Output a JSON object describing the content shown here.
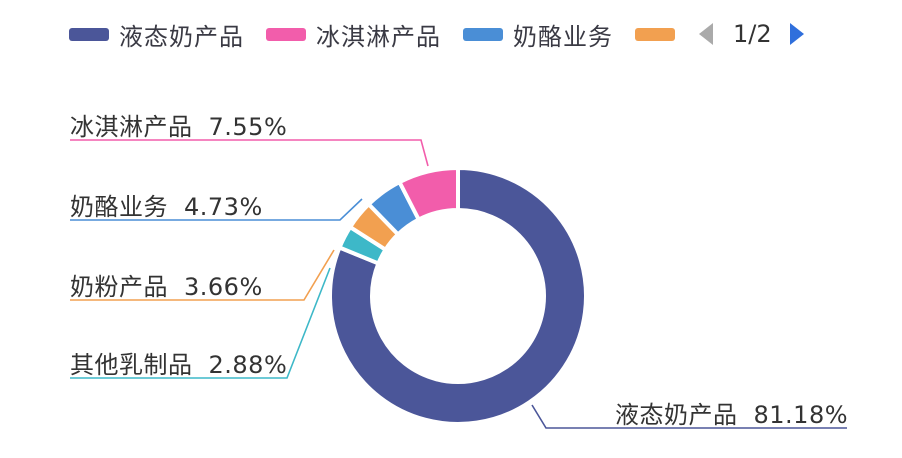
{
  "legend": {
    "items": [
      {
        "label": "液态奶产品",
        "color": "#4B5699"
      },
      {
        "label": "冰淇淋产品",
        "color": "#F25DAB"
      },
      {
        "label": "奶酪业务",
        "color": "#4A8ED6"
      },
      {
        "label": "",
        "color": "#F2A050"
      }
    ],
    "page": "1/2",
    "prev_icon": "triangle-left-icon",
    "next_icon": "triangle-right-icon"
  },
  "labels": [
    {
      "name": "冰淇淋产品",
      "pct": "7.55%"
    },
    {
      "name": "奶酪业务",
      "pct": "4.73%"
    },
    {
      "name": "奶粉产品",
      "pct": "3.66%"
    },
    {
      "name": "其他乳制品",
      "pct": "2.88%"
    },
    {
      "name": "液态奶产品",
      "pct": "81.18%"
    }
  ],
  "chart_data": {
    "type": "pie",
    "variant": "donut",
    "title": "",
    "categories": [
      "液态奶产品",
      "其他乳制品",
      "奶粉产品",
      "奶酪业务",
      "冰淇淋产品"
    ],
    "values": [
      81.18,
      2.88,
      3.66,
      4.73,
      7.55
    ],
    "unit": "%",
    "colors": [
      "#4B5699",
      "#3DB8C8",
      "#F2A050",
      "#4A8ED6",
      "#F25DAB"
    ],
    "legend_position": "top",
    "legend_paged": true,
    "legend_page": "1/2",
    "center": [
      458,
      296
    ],
    "outer_radius": 128,
    "inner_radius": 86
  }
}
